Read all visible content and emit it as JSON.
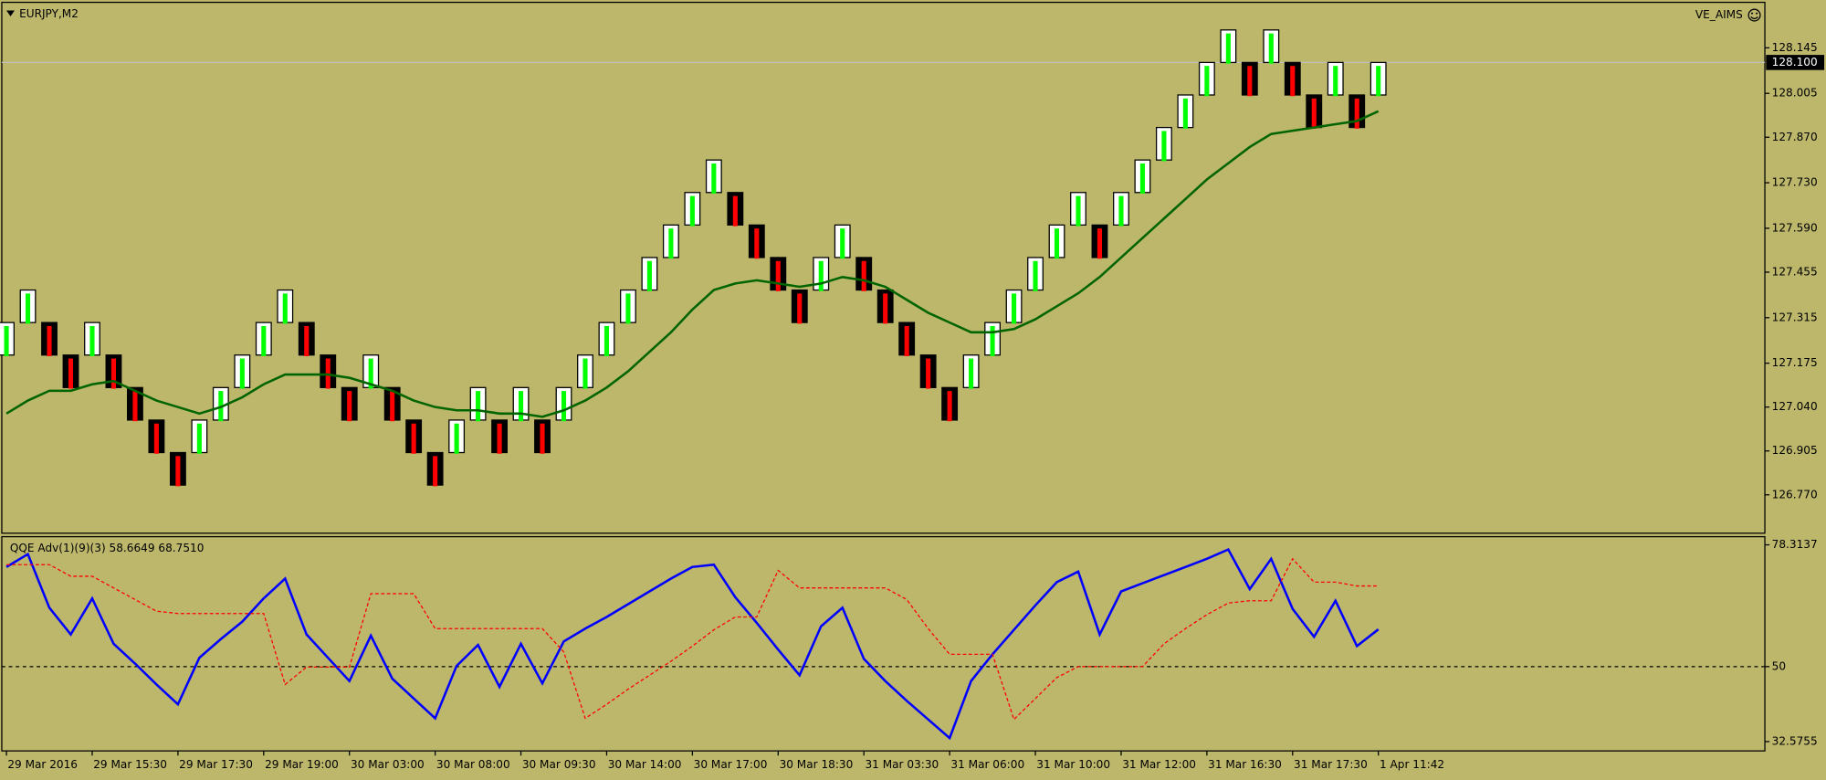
{
  "chart_data": [
    {
      "type": "renko",
      "title": "EURJPY,M2",
      "label": "VE_AIMS",
      "categories": [
        "29 Mar 2016",
        null,
        null,
        null,
        "29 Mar 15:30",
        null,
        null,
        null,
        "29 Mar 17:30",
        null,
        null,
        null,
        "29 Mar 19:00",
        null,
        null,
        null,
        "30 Mar 03:00",
        null,
        null,
        null,
        "30 Mar 08:00",
        null,
        null,
        null,
        "30 Mar 09:30",
        null,
        null,
        null,
        "30 Mar 14:00",
        null,
        null,
        null,
        "30 Mar 17:00",
        null,
        null,
        null,
        "30 Mar 18:30",
        null,
        null,
        null,
        "31 Mar 03:30",
        null,
        null,
        null,
        "31 Mar 06:00",
        null,
        null,
        null,
        "31 Mar 10:00",
        null,
        null,
        null,
        "31 Mar 12:00",
        null,
        null,
        null,
        "31 Mar 16:30",
        null,
        null,
        null,
        "31 Mar 17:30",
        null,
        null,
        null,
        "1 Apr 11:42"
      ],
      "open": [
        127.2,
        127.3,
        127.3,
        127.2,
        127.2,
        127.2,
        127.1,
        127.0,
        126.9,
        126.9,
        127.0,
        127.1,
        127.2,
        127.3,
        127.3,
        127.2,
        127.1,
        127.1,
        127.1,
        127.0,
        126.9,
        126.9,
        127.0,
        127.0,
        127.0,
        127.0,
        127.0,
        127.1,
        127.2,
        127.3,
        127.4,
        127.5,
        127.6,
        127.7,
        127.7,
        127.6,
        127.5,
        127.4,
        127.4,
        127.5,
        127.5,
        127.4,
        127.3,
        127.2,
        127.1,
        127.1,
        127.2,
        127.3,
        127.4,
        127.5,
        127.6,
        127.6,
        127.6,
        127.7,
        127.8,
        127.9,
        128.0,
        128.1,
        128.1,
        128.1,
        128.1,
        128.0,
        128.0,
        128.0,
        128.0
      ],
      "close": [
        127.3,
        127.4,
        127.2,
        127.1,
        127.3,
        127.1,
        127.0,
        126.9,
        126.8,
        127.0,
        127.1,
        127.2,
        127.3,
        127.4,
        127.2,
        127.1,
        127.0,
        127.2,
        127.0,
        126.9,
        126.8,
        127.0,
        127.1,
        126.9,
        127.1,
        126.9,
        127.1,
        127.2,
        127.3,
        127.4,
        127.5,
        127.6,
        127.7,
        127.8,
        127.6,
        127.5,
        127.4,
        127.3,
        127.5,
        127.6,
        127.4,
        127.3,
        127.2,
        127.1,
        127.0,
        127.2,
        127.3,
        127.4,
        127.5,
        127.6,
        127.7,
        127.5,
        127.7,
        127.8,
        127.9,
        128.0,
        128.1,
        128.2,
        128.0,
        128.2,
        128.0,
        127.9,
        128.1,
        127.9,
        128.1
      ],
      "up_color": "#ffffff",
      "down_color": "#000000",
      "up_bar_color": "#00ff00",
      "down_bar_color": "#ff0000",
      "series": [
        {
          "color": "#006400",
          "values": [
            127.02,
            127.06,
            127.09,
            127.09,
            127.11,
            127.12,
            127.09,
            127.06,
            127.04,
            127.02,
            127.04,
            127.07,
            127.11,
            127.14,
            127.14,
            127.14,
            127.13,
            127.11,
            127.09,
            127.06,
            127.04,
            127.03,
            127.03,
            127.02,
            127.02,
            127.01,
            127.03,
            127.06,
            127.1,
            127.15,
            127.21,
            127.27,
            127.34,
            127.4,
            127.42,
            127.43,
            127.42,
            127.41,
            127.42,
            127.44,
            127.43,
            127.41,
            127.37,
            127.33,
            127.3,
            127.27,
            127.27,
            127.28,
            127.31,
            127.35,
            127.39,
            127.44,
            127.5,
            127.56,
            127.62,
            127.68,
            127.74,
            127.79,
            127.84,
            127.88,
            127.89,
            127.9,
            127.91,
            127.92,
            127.95
          ]
        }
      ],
      "current_price": {
        "value": 128.1,
        "label": "128.100"
      },
      "current_price_color": "#c0c0c0",
      "ylim": [
        126.652,
        128.285
      ],
      "yticks": [
        128.145,
        128.005,
        {
          "value": 127.87,
          "label": "127.870"
        },
        {
          "value": 127.73,
          "label": "127.730"
        },
        {
          "value": 127.59,
          "label": "127.590"
        },
        127.455,
        127.315,
        127.175,
        {
          "value": 127.04,
          "label": "127.040"
        },
        126.905,
        {
          "value": 126.77,
          "label": "126.770"
        }
      ]
    },
    {
      "type": "line",
      "title": "QQE Adv(1)(9)(3) 58.6649 68.7510",
      "series": [
        {
          "color": "#0000ff",
          "values": [
            73.17,
            76.15,
            63.7,
            57.48,
            65.86,
            55.31,
            50.71,
            45.84,
            41.24,
            52.06,
            56.39,
            60.45,
            65.86,
            70.46,
            57.48,
            52.06,
            46.65,
            57.21,
            47.19,
            42.59,
            37.99,
            50.17,
            55.04,
            45.3,
            55.31,
            46.11,
            55.85,
            58.83,
            61.54,
            64.51,
            67.49,
            70.46,
            73.17,
            73.71,
            66.14,
            60.18,
            53.96,
            48.0,
            59.37,
            63.7,
            51.79,
            46.65,
            42.05,
            37.72,
            33.39,
            46.65,
            52.87,
            58.56,
            64.24,
            69.65,
            72.09,
            57.48,
            67.49,
            69.38,
            71.28,
            73.17,
            75.07,
            77.23,
            68.03,
            75.07,
            63.43,
            56.93,
            65.32,
            54.77,
            58.6649
          ]
        },
        {
          "color": "#ff0000",
          "style": "dotted",
          "values": [
            73.71,
            73.71,
            73.71,
            71.01,
            71.01,
            68.3,
            65.59,
            62.89,
            62.35,
            62.35,
            62.35,
            62.35,
            62.35,
            45.84,
            49.9,
            49.9,
            49.9,
            66.95,
            66.95,
            66.95,
            58.83,
            58.83,
            58.83,
            58.83,
            58.83,
            58.83,
            53.41,
            37.99,
            41.24,
            44.76,
            48.0,
            51.25,
            54.77,
            58.56,
            61.54,
            61.54,
            72.36,
            68.3,
            68.3,
            68.3,
            68.3,
            68.3,
            65.59,
            58.83,
            52.87,
            52.87,
            52.87,
            37.72,
            42.59,
            47.46,
            50,
            50,
            50,
            50,
            55.31,
            58.83,
            62.08,
            64.78,
            65.32,
            65.32,
            75.07,
            69.65,
            69.65,
            68.75,
            68.751
          ]
        }
      ],
      "level": 50,
      "ylim": [
        32.5755,
        78.3137
      ],
      "yticks": [
        78.3137,
        50,
        32.5755
      ]
    }
  ]
}
